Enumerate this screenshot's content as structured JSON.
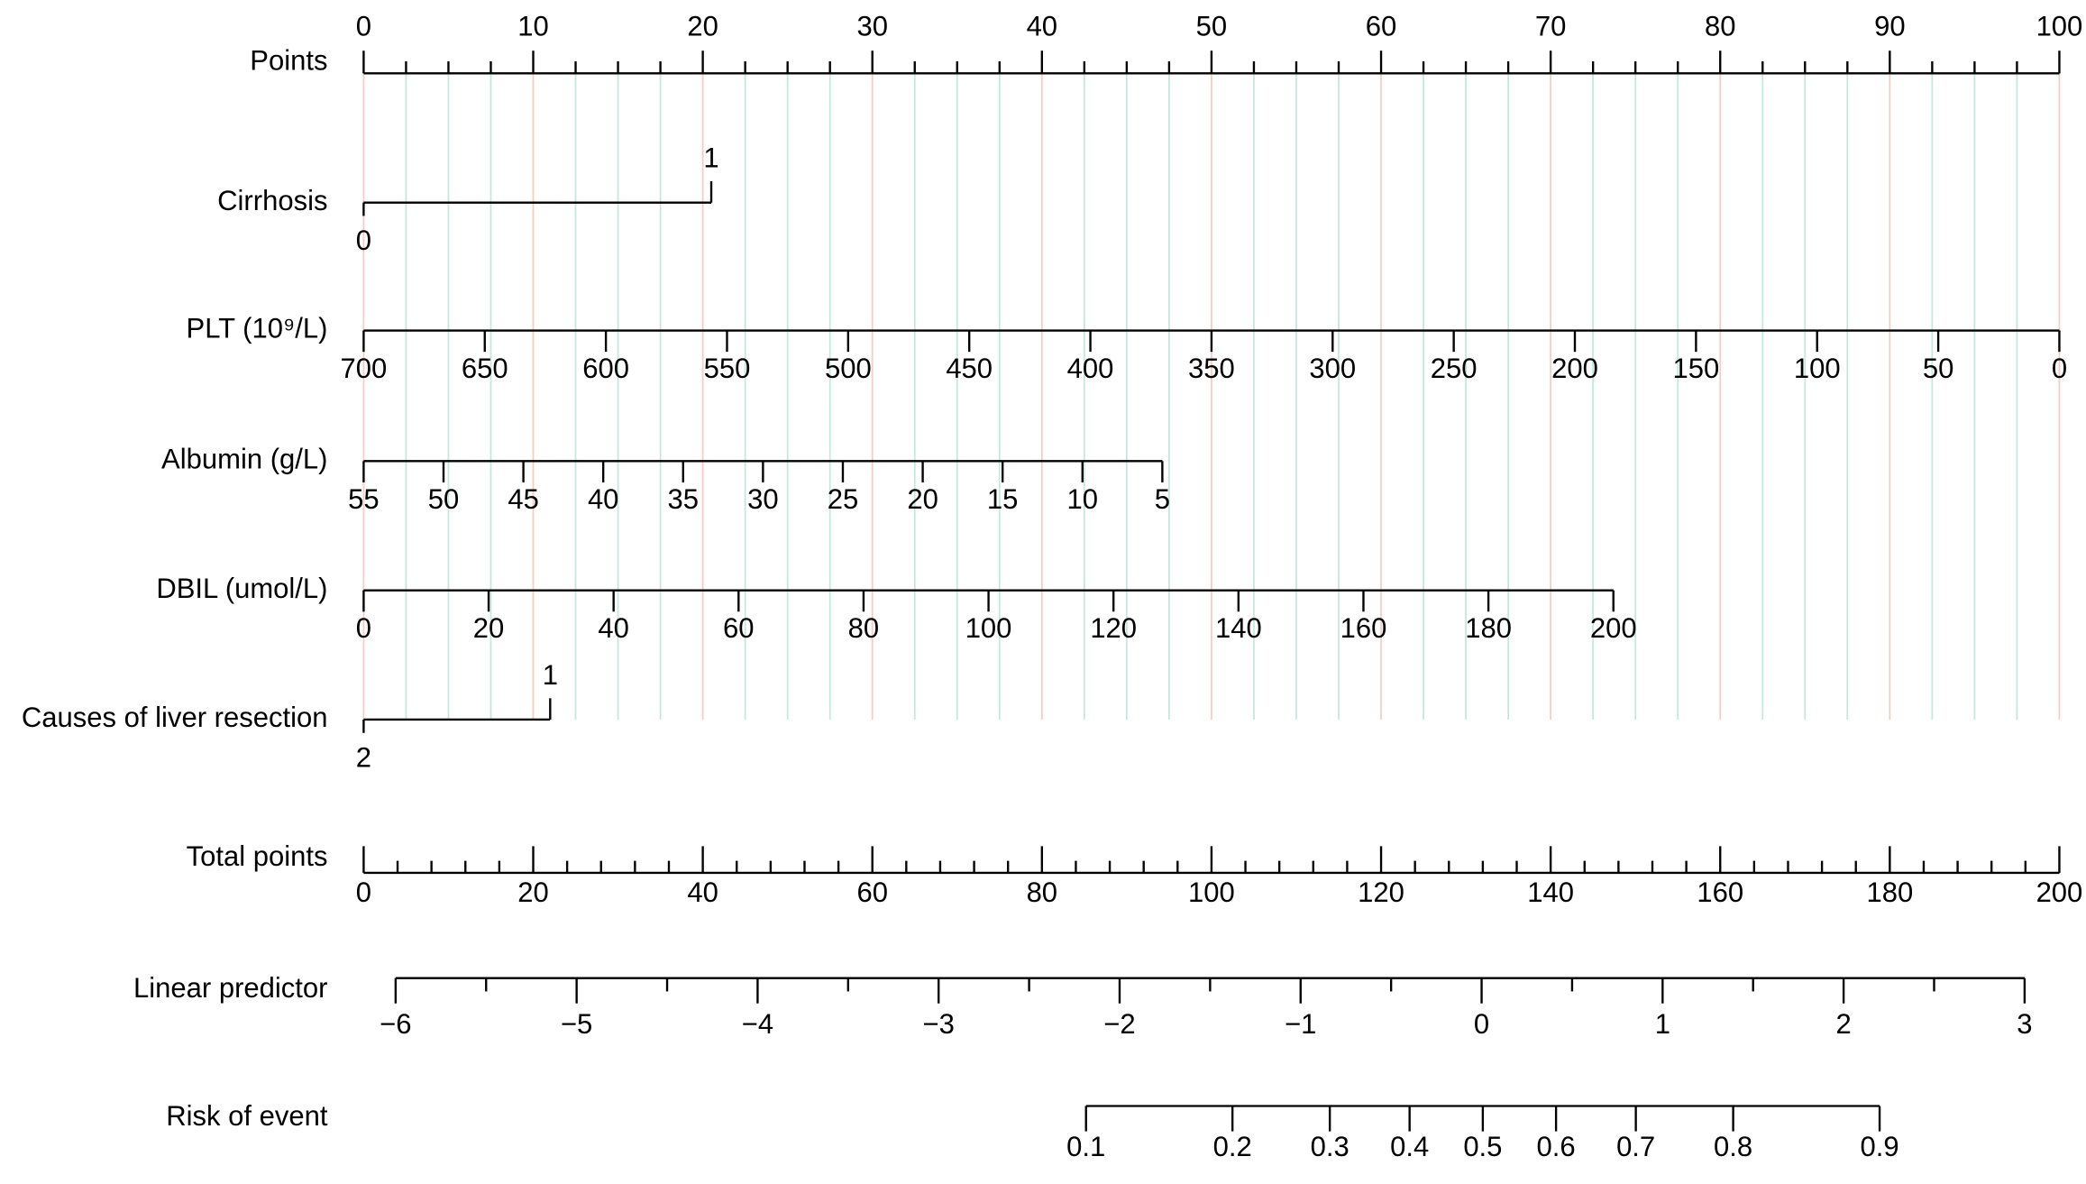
{
  "chart_data": {
    "type": "nomogram",
    "grid": true,
    "grid_colors": {
      "major": "#f6cdc3",
      "minor": "#c3e8df"
    },
    "line_color": "#000000",
    "points_axis": {
      "label": "Points",
      "xlim": [
        0,
        100
      ],
      "xticks": [
        0,
        10,
        20,
        30,
        40,
        50,
        60,
        70,
        80,
        90,
        100
      ],
      "minor_xticks": [
        2.5,
        5,
        7.5,
        12.5,
        15,
        17.5,
        22.5,
        25,
        27.5,
        32.5,
        35,
        37.5,
        42.5,
        45,
        47.5,
        52.5,
        55,
        57.5,
        62.5,
        65,
        67.5,
        72.5,
        75,
        77.5,
        82.5,
        85,
        87.5,
        92.5,
        95,
        97.5
      ]
    },
    "variables": [
      {
        "label": "Cirrhosis",
        "categories": [
          "0",
          "1"
        ],
        "points": [
          0,
          20.5
        ]
      },
      {
        "label": "PLT (10⁹/L)",
        "xlim": [
          700,
          0
        ],
        "points_lim": [
          0,
          100
        ],
        "xticks": [
          700,
          650,
          600,
          550,
          500,
          450,
          400,
          350,
          300,
          250,
          200,
          150,
          100,
          50,
          0
        ]
      },
      {
        "label": "Albumin (g/L)",
        "xlim": [
          55,
          5
        ],
        "points_lim": [
          0,
          47.1
        ],
        "xticks": [
          55,
          50,
          45,
          40,
          35,
          30,
          25,
          20,
          15,
          10,
          5
        ]
      },
      {
        "label": "DBIL (umol/L)",
        "xlim": [
          0,
          200
        ],
        "points_lim": [
          0,
          73.7
        ],
        "xticks": [
          0,
          20,
          40,
          60,
          80,
          100,
          120,
          140,
          160,
          180,
          200
        ]
      },
      {
        "label": "Causes of liver resection",
        "categories": [
          "2",
          "1"
        ],
        "points": [
          0,
          11.0
        ]
      }
    ],
    "total_points_axis": {
      "label": "Total points",
      "xlim": [
        0,
        200
      ],
      "xticks": [
        0,
        20,
        40,
        60,
        80,
        100,
        120,
        140,
        160,
        180,
        200
      ],
      "minor_xticks": [
        4,
        8,
        12,
        16,
        24,
        28,
        32,
        36,
        44,
        48,
        52,
        56,
        64,
        68,
        72,
        76,
        84,
        88,
        92,
        96,
        104,
        108,
        112,
        116,
        124,
        128,
        132,
        136,
        144,
        148,
        152,
        156,
        164,
        168,
        172,
        176,
        184,
        188,
        192,
        196
      ]
    },
    "linear_predictor_axis": {
      "label": "Linear predictor",
      "xlim": [
        -6,
        3
      ],
      "total_points_lim": [
        3.77,
        195.9
      ],
      "xticks": [
        {
          "value": -6,
          "label": "−6"
        },
        {
          "value": -5,
          "label": "−5"
        },
        {
          "value": -4,
          "label": "−4"
        },
        {
          "value": -3,
          "label": "−3"
        },
        {
          "value": -2,
          "label": "−2"
        },
        {
          "value": -1,
          "label": "−1"
        },
        0,
        1,
        2,
        3
      ],
      "minor_xticks": [
        -5.5,
        -4.5,
        -3.5,
        -2.5,
        -1.5,
        -0.5,
        0.5,
        1.5,
        2.5
      ]
    },
    "risk_axis": {
      "label": "Risk of event",
      "scale": "logit",
      "xlim": [
        0.1,
        0.9
      ],
      "total_points_lim": [
        85.2,
        178.8
      ],
      "xticks": [
        0.1,
        0.2,
        0.3,
        0.4,
        0.5,
        0.6,
        0.7,
        0.8,
        0.9
      ]
    }
  }
}
